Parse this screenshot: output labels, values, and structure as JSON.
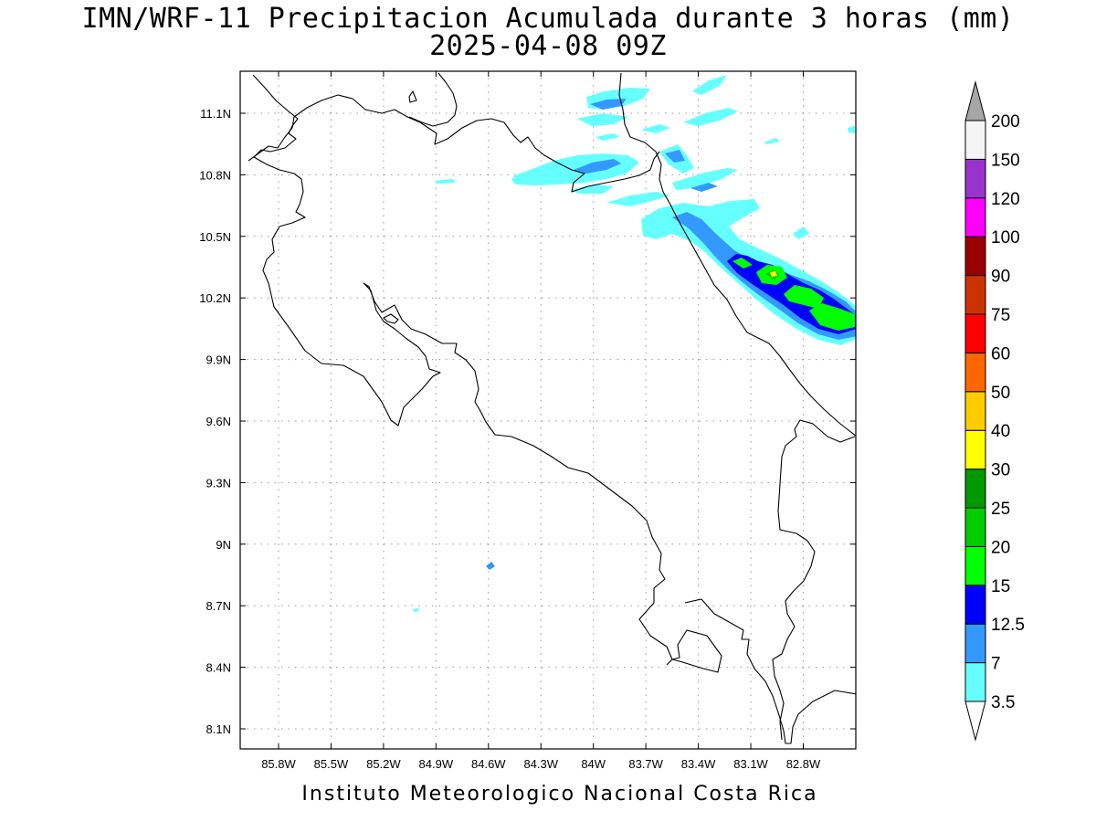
{
  "title": {
    "line1": "IMN/WRF-11 Precipitacion Acumulada durante 3 horas (mm)",
    "line2": "2025-04-08 09Z"
  },
  "footer": "Instituto Meteorologico Nacional Costa Rica",
  "map": {
    "lon_labels": [
      "85.8W",
      "85.5W",
      "85.2W",
      "84.9W",
      "84.6W",
      "84.3W",
      "84W",
      "83.7W",
      "83.4W",
      "83.1W",
      "82.8W"
    ],
    "lat_labels": [
      "11.1N",
      "10.8N",
      "10.5N",
      "10.2N",
      "9.9N",
      "9.6N",
      "9.3N",
      "9N",
      "8.7N",
      "8.4N",
      "8.1N"
    ],
    "grid": "dotted",
    "coastline_color": "#000000"
  },
  "colorbar": {
    "labels": [
      "3.5",
      "7",
      "12.5",
      "15",
      "20",
      "25",
      "30",
      "40",
      "50",
      "60",
      "75",
      "90",
      "100",
      "120",
      "150",
      "200"
    ],
    "colors": [
      "#66ffff",
      "#3399ff",
      "#0000ff",
      "#00ff00",
      "#00cc00",
      "#009900",
      "#ffff00",
      "#ffcc00",
      "#ff6600",
      "#ff0000",
      "#cc3300",
      "#990000",
      "#ff00ff",
      "#9933cc",
      "#f5f5f5"
    ],
    "top_arrow_color": "#a6a6a6",
    "bottom_arrow_color": "#ffffff"
  },
  "precip_colors": {
    "light": "#66ffff",
    "moderate": "#3399ff",
    "blue": "#0000ff",
    "green": "#00ff00",
    "dark_green": "#00cc00",
    "yellow": "#ffff00"
  }
}
